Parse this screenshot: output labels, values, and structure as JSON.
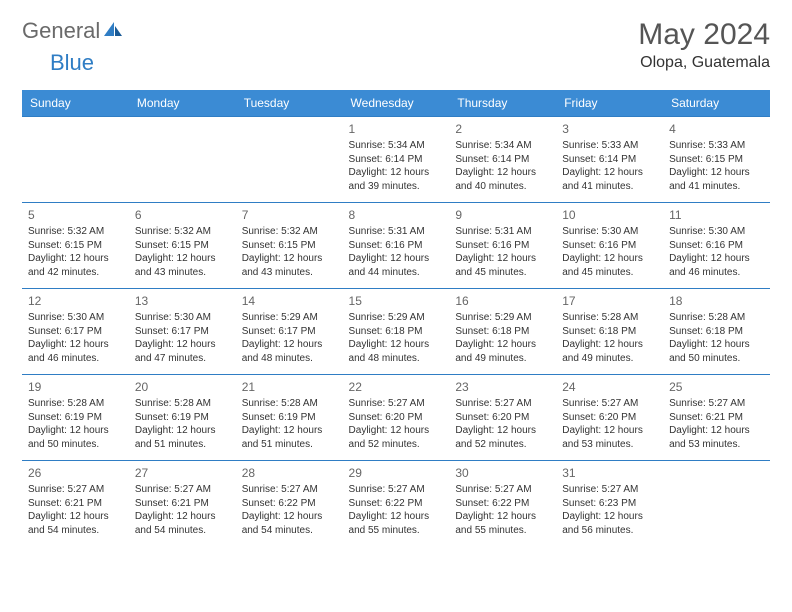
{
  "brand": {
    "part1": "General",
    "part2": "Blue"
  },
  "title": "May 2024",
  "location": "Olopa, Guatemala",
  "colors": {
    "header_bg": "#3b8bd4",
    "header_text": "#ffffff",
    "border": "#2f7dc4",
    "body_text": "#333333",
    "daynum": "#666666",
    "brand_gray": "#6a6a6a",
    "brand_blue": "#2f7dc4",
    "background": "#ffffff"
  },
  "typography": {
    "title_fontsize": 30,
    "location_fontsize": 16,
    "header_fontsize": 12,
    "daynum_fontsize": 12,
    "cell_fontsize": 10,
    "logo_fontsize": 22
  },
  "calendar": {
    "day_headers": [
      "Sunday",
      "Monday",
      "Tuesday",
      "Wednesday",
      "Thursday",
      "Friday",
      "Saturday"
    ],
    "weeks": [
      [
        null,
        null,
        null,
        {
          "num": "1",
          "sunrise": "Sunrise: 5:34 AM",
          "sunset": "Sunset: 6:14 PM",
          "daylight": "Daylight: 12 hours and 39 minutes."
        },
        {
          "num": "2",
          "sunrise": "Sunrise: 5:34 AM",
          "sunset": "Sunset: 6:14 PM",
          "daylight": "Daylight: 12 hours and 40 minutes."
        },
        {
          "num": "3",
          "sunrise": "Sunrise: 5:33 AM",
          "sunset": "Sunset: 6:14 PM",
          "daylight": "Daylight: 12 hours and 41 minutes."
        },
        {
          "num": "4",
          "sunrise": "Sunrise: 5:33 AM",
          "sunset": "Sunset: 6:15 PM",
          "daylight": "Daylight: 12 hours and 41 minutes."
        }
      ],
      [
        {
          "num": "5",
          "sunrise": "Sunrise: 5:32 AM",
          "sunset": "Sunset: 6:15 PM",
          "daylight": "Daylight: 12 hours and 42 minutes."
        },
        {
          "num": "6",
          "sunrise": "Sunrise: 5:32 AM",
          "sunset": "Sunset: 6:15 PM",
          "daylight": "Daylight: 12 hours and 43 minutes."
        },
        {
          "num": "7",
          "sunrise": "Sunrise: 5:32 AM",
          "sunset": "Sunset: 6:15 PM",
          "daylight": "Daylight: 12 hours and 43 minutes."
        },
        {
          "num": "8",
          "sunrise": "Sunrise: 5:31 AM",
          "sunset": "Sunset: 6:16 PM",
          "daylight": "Daylight: 12 hours and 44 minutes."
        },
        {
          "num": "9",
          "sunrise": "Sunrise: 5:31 AM",
          "sunset": "Sunset: 6:16 PM",
          "daylight": "Daylight: 12 hours and 45 minutes."
        },
        {
          "num": "10",
          "sunrise": "Sunrise: 5:30 AM",
          "sunset": "Sunset: 6:16 PM",
          "daylight": "Daylight: 12 hours and 45 minutes."
        },
        {
          "num": "11",
          "sunrise": "Sunrise: 5:30 AM",
          "sunset": "Sunset: 6:16 PM",
          "daylight": "Daylight: 12 hours and 46 minutes."
        }
      ],
      [
        {
          "num": "12",
          "sunrise": "Sunrise: 5:30 AM",
          "sunset": "Sunset: 6:17 PM",
          "daylight": "Daylight: 12 hours and 46 minutes."
        },
        {
          "num": "13",
          "sunrise": "Sunrise: 5:30 AM",
          "sunset": "Sunset: 6:17 PM",
          "daylight": "Daylight: 12 hours and 47 minutes."
        },
        {
          "num": "14",
          "sunrise": "Sunrise: 5:29 AM",
          "sunset": "Sunset: 6:17 PM",
          "daylight": "Daylight: 12 hours and 48 minutes."
        },
        {
          "num": "15",
          "sunrise": "Sunrise: 5:29 AM",
          "sunset": "Sunset: 6:18 PM",
          "daylight": "Daylight: 12 hours and 48 minutes."
        },
        {
          "num": "16",
          "sunrise": "Sunrise: 5:29 AM",
          "sunset": "Sunset: 6:18 PM",
          "daylight": "Daylight: 12 hours and 49 minutes."
        },
        {
          "num": "17",
          "sunrise": "Sunrise: 5:28 AM",
          "sunset": "Sunset: 6:18 PM",
          "daylight": "Daylight: 12 hours and 49 minutes."
        },
        {
          "num": "18",
          "sunrise": "Sunrise: 5:28 AM",
          "sunset": "Sunset: 6:18 PM",
          "daylight": "Daylight: 12 hours and 50 minutes."
        }
      ],
      [
        {
          "num": "19",
          "sunrise": "Sunrise: 5:28 AM",
          "sunset": "Sunset: 6:19 PM",
          "daylight": "Daylight: 12 hours and 50 minutes."
        },
        {
          "num": "20",
          "sunrise": "Sunrise: 5:28 AM",
          "sunset": "Sunset: 6:19 PM",
          "daylight": "Daylight: 12 hours and 51 minutes."
        },
        {
          "num": "21",
          "sunrise": "Sunrise: 5:28 AM",
          "sunset": "Sunset: 6:19 PM",
          "daylight": "Daylight: 12 hours and 51 minutes."
        },
        {
          "num": "22",
          "sunrise": "Sunrise: 5:27 AM",
          "sunset": "Sunset: 6:20 PM",
          "daylight": "Daylight: 12 hours and 52 minutes."
        },
        {
          "num": "23",
          "sunrise": "Sunrise: 5:27 AM",
          "sunset": "Sunset: 6:20 PM",
          "daylight": "Daylight: 12 hours and 52 minutes."
        },
        {
          "num": "24",
          "sunrise": "Sunrise: 5:27 AM",
          "sunset": "Sunset: 6:20 PM",
          "daylight": "Daylight: 12 hours and 53 minutes."
        },
        {
          "num": "25",
          "sunrise": "Sunrise: 5:27 AM",
          "sunset": "Sunset: 6:21 PM",
          "daylight": "Daylight: 12 hours and 53 minutes."
        }
      ],
      [
        {
          "num": "26",
          "sunrise": "Sunrise: 5:27 AM",
          "sunset": "Sunset: 6:21 PM",
          "daylight": "Daylight: 12 hours and 54 minutes."
        },
        {
          "num": "27",
          "sunrise": "Sunrise: 5:27 AM",
          "sunset": "Sunset: 6:21 PM",
          "daylight": "Daylight: 12 hours and 54 minutes."
        },
        {
          "num": "28",
          "sunrise": "Sunrise: 5:27 AM",
          "sunset": "Sunset: 6:22 PM",
          "daylight": "Daylight: 12 hours and 54 minutes."
        },
        {
          "num": "29",
          "sunrise": "Sunrise: 5:27 AM",
          "sunset": "Sunset: 6:22 PM",
          "daylight": "Daylight: 12 hours and 55 minutes."
        },
        {
          "num": "30",
          "sunrise": "Sunrise: 5:27 AM",
          "sunset": "Sunset: 6:22 PM",
          "daylight": "Daylight: 12 hours and 55 minutes."
        },
        {
          "num": "31",
          "sunrise": "Sunrise: 5:27 AM",
          "sunset": "Sunset: 6:23 PM",
          "daylight": "Daylight: 12 hours and 56 minutes."
        },
        null
      ]
    ]
  }
}
